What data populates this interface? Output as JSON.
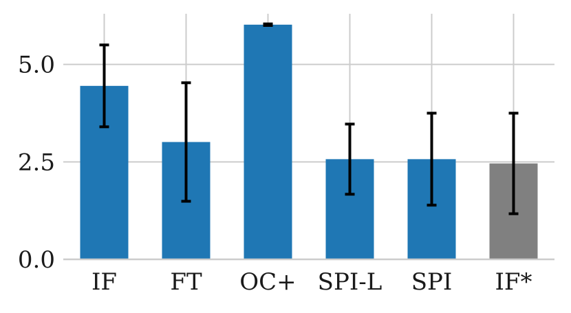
{
  "chart_data": {
    "type": "bar",
    "categories": [
      "IF",
      "FT",
      "OC+",
      "SPI-L",
      "SPI",
      "IF*"
    ],
    "values": [
      4.45,
      3.01,
      6.02,
      2.57,
      2.57,
      2.46
    ],
    "errors": [
      1.05,
      1.52,
      0.02,
      0.9,
      1.18,
      1.29
    ],
    "colors": [
      "#1f77b4",
      "#1f77b4",
      "#1f77b4",
      "#1f77b4",
      "#1f77b4",
      "#808080"
    ],
    "yticks": [
      "0.0",
      "2.5",
      "5.0"
    ],
    "ylim": [
      0,
      6.3
    ],
    "grid": true,
    "title": "",
    "xlabel": "",
    "ylabel": ""
  }
}
